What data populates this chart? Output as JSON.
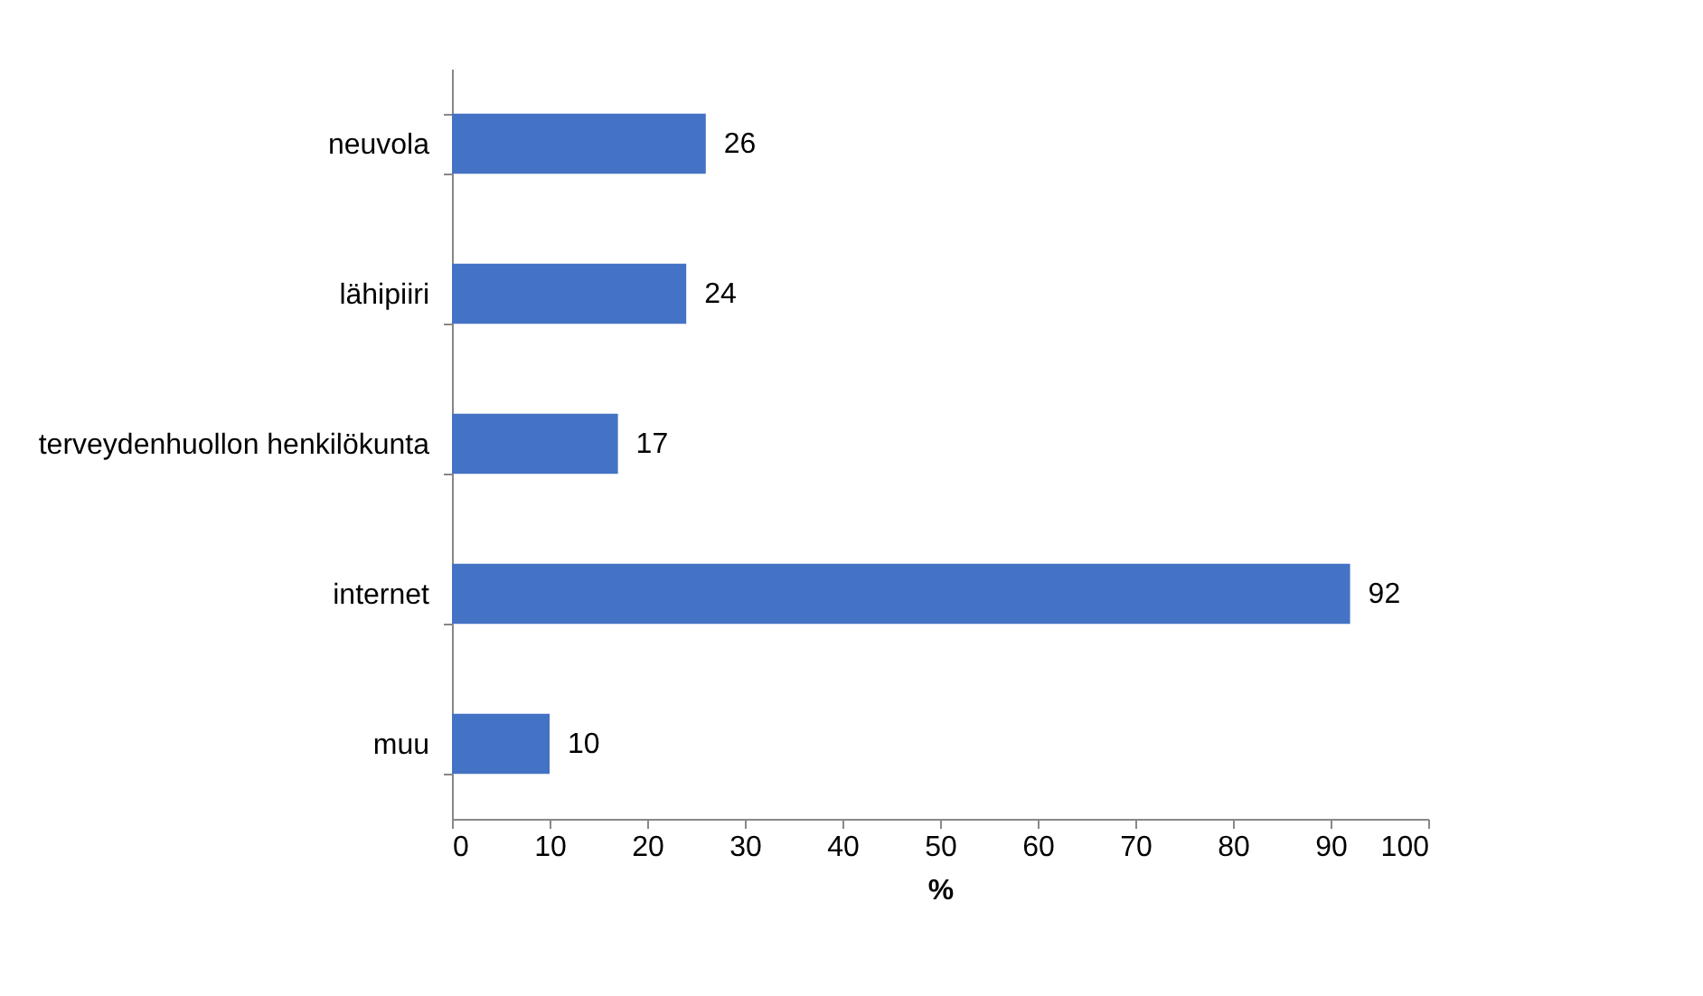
{
  "chart_data": {
    "type": "bar",
    "orientation": "horizontal",
    "categories": [
      "neuvola",
      "lähipiiri",
      "terveydenhuollon henkilökunta",
      "internet",
      "muu"
    ],
    "values": [
      26,
      24,
      17,
      92,
      10
    ],
    "color": "#4472c4",
    "xlabel": "%",
    "xlim": [
      0,
      100
    ],
    "xticks": [
      0,
      10,
      20,
      30,
      40,
      50,
      60,
      70,
      80,
      90,
      100
    ],
    "data_labels": true,
    "grid": false
  }
}
